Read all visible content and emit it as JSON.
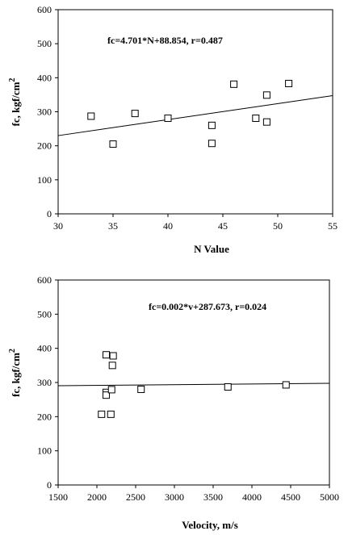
{
  "chart_data": [
    {
      "type": "scatter",
      "xlabel": "N Value",
      "ylabel": "fc, kgf/cm",
      "ylabel_sup": "2",
      "xlim": [
        30,
        55
      ],
      "ylim": [
        0,
        600
      ],
      "xticks": [
        "30",
        "35",
        "40",
        "45",
        "50",
        "55"
      ],
      "yticks": [
        "0",
        "100",
        "200",
        "300",
        "400",
        "500",
        "600"
      ],
      "annotation": "fc=4.701*N+88.854, r=0.487",
      "grid": false,
      "fit": {
        "slope": 4.701,
        "intercept": 88.854
      },
      "points": [
        {
          "x": 33,
          "y": 287
        },
        {
          "x": 35,
          "y": 205
        },
        {
          "x": 37,
          "y": 295
        },
        {
          "x": 40,
          "y": 281
        },
        {
          "x": 44,
          "y": 260
        },
        {
          "x": 44,
          "y": 207
        },
        {
          "x": 46,
          "y": 381
        },
        {
          "x": 48,
          "y": 281
        },
        {
          "x": 49,
          "y": 349
        },
        {
          "x": 49,
          "y": 270
        },
        {
          "x": 51,
          "y": 383
        }
      ]
    },
    {
      "type": "scatter",
      "xlabel": "Velocity, m/s",
      "ylabel": "fc, kgf/cm",
      "ylabel_sup": "2",
      "xlim": [
        1500,
        5000
      ],
      "ylim": [
        0,
        600
      ],
      "xticks": [
        "1500",
        "2000",
        "2500",
        "3000",
        "3500",
        "4000",
        "4500",
        "5000"
      ],
      "yticks": [
        "0",
        "100",
        "200",
        "300",
        "400",
        "500",
        "600"
      ],
      "annotation": "fc=0.002*v+287.673, r=0.024",
      "grid": false,
      "fit": {
        "slope": 0.002,
        "intercept": 287.673
      },
      "points": [
        {
          "x": 2060,
          "y": 207
        },
        {
          "x": 2120,
          "y": 381
        },
        {
          "x": 2120,
          "y": 271
        },
        {
          "x": 2120,
          "y": 263
        },
        {
          "x": 2180,
          "y": 207
        },
        {
          "x": 2190,
          "y": 279
        },
        {
          "x": 2200,
          "y": 350
        },
        {
          "x": 2210,
          "y": 378
        },
        {
          "x": 2570,
          "y": 280
        },
        {
          "x": 3690,
          "y": 287
        },
        {
          "x": 4440,
          "y": 293
        }
      ]
    }
  ]
}
